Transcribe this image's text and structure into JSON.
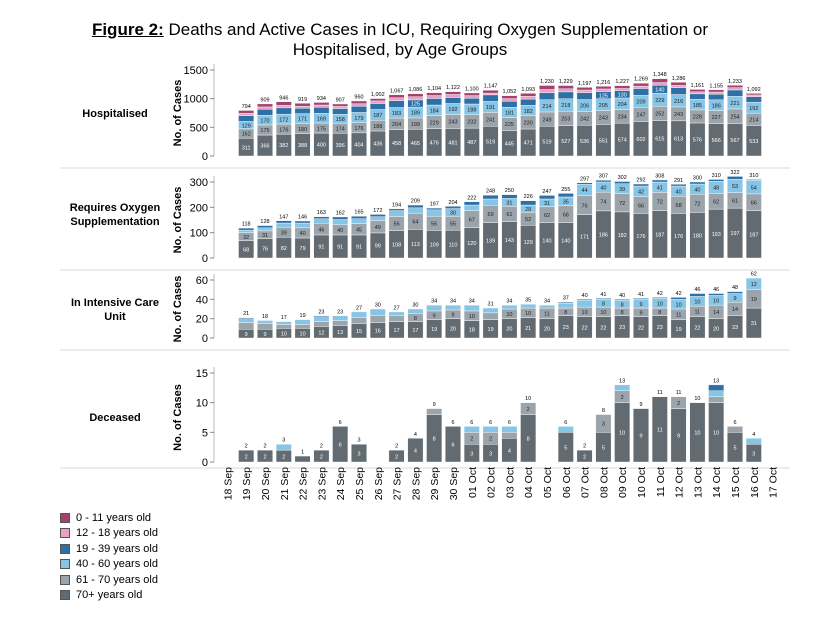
{
  "title": {
    "label": "Figure 2:",
    "text": " Deaths and Active Cases in ICU, Requiring Oxygen Supplementation or Hospitalised, by Age Groups"
  },
  "chart_data": {
    "type": "bar",
    "stacked": true,
    "grid": false,
    "legend_position": "bottom-left",
    "categories": [
      "18 Sep",
      "19 Sep",
      "20 Sep",
      "21 Sep",
      "22 Sep",
      "23 Sep",
      "24 Sep",
      "25 Sep",
      "26 Sep",
      "27 Sep",
      "28 Sep",
      "29 Sep",
      "30 Sep",
      "01 Oct",
      "02 Oct",
      "03 Oct",
      "04 Oct",
      "05 Oct",
      "06 Oct",
      "07 Oct",
      "08 Oct",
      "09 Oct",
      "10 Oct",
      "11 Oct",
      "12 Oct",
      "13 Oct",
      "14 Oct",
      "15 Oct",
      "16 Oct",
      "17 Oct"
    ],
    "series_names": [
      "0 - 11 years old",
      "12 - 18 years old",
      "19 - 39 years old",
      "40 - 60 years old",
      "61 - 70 years old",
      "70+ years old"
    ],
    "colors": {
      "0 - 11 years old": "#a3426f",
      "12 - 18 years old": "#e7a2c3",
      "19 - 39 years old": "#2e6fa6",
      "40 - 60 years old": "#87c5e6",
      "61 - 70 years old": "#9ca4ab",
      "70+ years old": "#626b72"
    },
    "panels": [
      {
        "name": "Hospitalised",
        "ylabel": "No. of Cases",
        "ylim": [
          0,
          1500
        ],
        "yticks": [
          0,
          500,
          1000,
          1500
        ],
        "totals": [
          null,
          794,
          909,
          946,
          919,
          934,
          907,
          960,
          1002,
          1067,
          1086,
          1104,
          1122,
          1100,
          1147,
          1052,
          1093,
          1230,
          1229,
          1197,
          1216,
          1227,
          1269,
          1348,
          1286,
          1161,
          1155,
          1233,
          1092,
          null
        ],
        "series": [
          {
            "name": "70+ years old",
            "values": [
              null,
              311,
              366,
              382,
              388,
              400,
              396,
              404,
              436,
              458,
              465,
              476,
              481,
              487,
              519,
              445,
              471,
              519,
              527,
              536,
              551,
              574,
              602,
              615,
              613,
              576,
              566,
              567,
              533,
              null
            ]
          },
          {
            "name": "61 - 70 years old",
            "values": [
              null,
              162,
              175,
              176,
              180,
              175,
              174,
              176,
              188,
              204,
              199,
              229,
              243,
              232,
              241,
              225,
              230,
              249,
              253,
              242,
              243,
              234,
              247,
              252,
              243,
              228,
              227,
              254,
              214,
              null
            ]
          },
          {
            "name": "40 - 60 years old",
            "values": [
              null,
              129,
              170,
              172,
              171,
              169,
              158,
              179,
              187,
              183,
              189,
              184,
              192,
              188,
              191,
              181,
              182,
              214,
              218,
              206,
              205,
              204,
              209,
              229,
              216,
              185,
              186,
              221,
              192,
              null
            ]
          },
          {
            "name": "19 - 39 years old",
            "values": [
              null,
              100,
              105,
              110,
              95,
              105,
              100,
              110,
              105,
              120,
              125,
              115,
              105,
              100,
              115,
              105,
              110,
              120,
              120,
              120,
              125,
              130,
              120,
              140,
              120,
              95,
              100,
              110,
              95,
              null
            ]
          },
          {
            "name": "12 - 18 years old",
            "values": [
              null,
              45,
              40,
              45,
              35,
              40,
              37,
              42,
              45,
              50,
              55,
              50,
              52,
              46,
              31,
              45,
              50,
              58,
              54,
              47,
              45,
              35,
              41,
              45,
              41,
              35,
              37,
              40,
              31,
              null
            ]
          },
          {
            "name": "0 - 11 years old",
            "values": [
              null,
              47,
              53,
              61,
              50,
              45,
              42,
              49,
              41,
              52,
              53,
              50,
              49,
              47,
              50,
              51,
              50,
              70,
              57,
              46,
              47,
              50,
              50,
              67,
              53,
              42,
              39,
              41,
              27,
              null
            ]
          }
        ]
      },
      {
        "name": "Requires Oxygen Supplementation",
        "ylabel": "No. of Cases",
        "ylim": [
          0,
          300
        ],
        "yticks": [
          0,
          100,
          200,
          300
        ],
        "totals": [
          null,
          118,
          128,
          147,
          146,
          163,
          162,
          165,
          172,
          194,
          209,
          197,
          204,
          222,
          248,
          250,
          226,
          247,
          255,
          297,
          307,
          302,
          292,
          308,
          291,
          300,
          310,
          322,
          310,
          null
        ],
        "series": [
          {
            "name": "70+ years old",
            "values": [
              null,
              68,
              76,
              82,
              79,
              91,
              91,
              91,
              99,
              108,
              113,
              109,
              110,
              120,
              139,
              143,
              129,
              140,
              140,
              171,
              186,
              182,
              176,
              187,
              176,
              180,
              193,
              197,
              187,
              null
            ]
          },
          {
            "name": "61 - 70 years old",
            "values": [
              null,
              32,
              31,
              39,
              40,
              46,
              40,
              45,
              49,
              56,
              64,
              56,
              55,
              67,
              69,
              61,
              52,
              62,
              66,
              76,
              74,
              72,
              66,
              72,
              68,
              72,
              62,
              61,
              66,
              null
            ]
          },
          {
            "name": "40 - 60 years old",
            "values": [
              null,
              10,
              12,
              17,
              19,
              18,
              21,
              19,
              15,
              23,
              21,
              25,
              30,
              22,
              25,
              31,
              28,
              31,
              35,
              44,
              40,
              39,
              42,
              41,
              40,
              40,
              48,
              53,
              54,
              null
            ]
          },
          {
            "name": "19 - 39 years old",
            "values": [
              null,
              8,
              9,
              9,
              8,
              8,
              10,
              10,
              9,
              7,
              11,
              7,
              9,
              13,
              15,
              15,
              17,
              14,
              14,
              6,
              7,
              9,
              8,
              8,
              7,
              8,
              7,
              11,
              3,
              null
            ]
          },
          {
            "name": "12 - 18 years old",
            "values": [
              null,
              0,
              0,
              0,
              0,
              0,
              0,
              0,
              0,
              0,
              0,
              0,
              0,
              0,
              0,
              0,
              0,
              0,
              0,
              0,
              0,
              0,
              0,
              0,
              0,
              0,
              0,
              0,
              0,
              null
            ]
          },
          {
            "name": "0 - 11 years old",
            "values": [
              null,
              0,
              0,
              0,
              0,
              0,
              0,
              0,
              0,
              0,
              0,
              0,
              0,
              0,
              0,
              0,
              0,
              0,
              0,
              0,
              0,
              0,
              0,
              0,
              0,
              0,
              0,
              0,
              0,
              null
            ]
          }
        ]
      },
      {
        "name": "In Intensive Care Unit",
        "ylabel": "No. of Cases",
        "ylim": [
          0,
          60
        ],
        "yticks": [
          0,
          20,
          40,
          60
        ],
        "totals": [
          null,
          21,
          18,
          17,
          19,
          23,
          23,
          27,
          30,
          27,
          30,
          34,
          34,
          34,
          31,
          34,
          35,
          34,
          37,
          40,
          41,
          40,
          41,
          42,
          42,
          46,
          46,
          48,
          62,
          null
        ],
        "series": [
          {
            "name": "70+ years old",
            "values": [
              null,
              9,
              9,
              10,
              10,
              12,
              13,
              15,
              16,
              17,
              17,
              19,
              20,
              18,
              19,
              20,
              21,
              20,
              23,
              22,
              22,
              23,
              22,
              23,
              19,
              22,
              20,
              23,
              31,
              null
            ]
          },
          {
            "name": "61 - 70 years old",
            "values": [
              null,
              7,
              6,
              4,
              4,
              5,
              5,
              6,
              7,
              6,
              8,
              9,
              9,
              10,
              7,
              10,
              10,
              11,
              8,
              10,
              10,
              8,
              9,
              8,
              11,
              11,
              14,
              14,
              19,
              null
            ]
          },
          {
            "name": "40 - 60 years old",
            "values": [
              null,
              4,
              2,
              3,
              5,
              5,
              5,
              6,
              7,
              4,
              5,
              6,
              5,
              6,
              5,
              4,
              4,
              3,
              5,
              7,
              8,
              8,
              9,
              10,
              10,
              10,
              10,
              9,
              12,
              null
            ]
          },
          {
            "name": "19 - 39 years old",
            "values": [
              null,
              1,
              1,
              0,
              0,
              1,
              0,
              0,
              0,
              0,
              0,
              0,
              0,
              0,
              0,
              0,
              0,
              0,
              1,
              1,
              1,
              1,
              1,
              1,
              2,
              3,
              2,
              2,
              0,
              null
            ]
          },
          {
            "name": "12 - 18 years old",
            "values": [
              null,
              0,
              0,
              0,
              0,
              0,
              0,
              0,
              0,
              0,
              0,
              0,
              0,
              0,
              0,
              0,
              0,
              0,
              0,
              0,
              0,
              0,
              0,
              0,
              0,
              0,
              0,
              0,
              0,
              null
            ]
          },
          {
            "name": "0 - 11 years old",
            "values": [
              null,
              0,
              0,
              0,
              0,
              0,
              0,
              0,
              0,
              0,
              0,
              0,
              0,
              0,
              0,
              0,
              0,
              0,
              0,
              0,
              0,
              0,
              0,
              0,
              0,
              0,
              0,
              0,
              0,
              null
            ]
          }
        ]
      },
      {
        "name": "Deceased",
        "ylabel": "No. of Cases",
        "ylim": [
          0,
          15
        ],
        "yticks": [
          0,
          5,
          10,
          15
        ],
        "totals": [
          null,
          2,
          2,
          3,
          1,
          2,
          6,
          3,
          null,
          2,
          4,
          9,
          6,
          6,
          6,
          6,
          10,
          null,
          6,
          2,
          8,
          13,
          9,
          11,
          11,
          10,
          13,
          6,
          4,
          null
        ],
        "series": [
          {
            "name": "70+ years old",
            "values": [
              null,
              2,
              2,
              2,
              1,
              2,
              6,
              3,
              null,
              2,
              4,
              8,
              6,
              3,
              3,
              4,
              8,
              null,
              5,
              2,
              5,
              10,
              9,
              11,
              9,
              10,
              10,
              5,
              3,
              null
            ]
          },
          {
            "name": "61 - 70 years old",
            "values": [
              null,
              0,
              0,
              0,
              0,
              0,
              0,
              0,
              null,
              0,
              0,
              1,
              0,
              2,
              2,
              1,
              2,
              null,
              0,
              0,
              3,
              2,
              0,
              0,
              2,
              0,
              1,
              1,
              0,
              null
            ]
          },
          {
            "name": "40 - 60 years old",
            "values": [
              null,
              0,
              0,
              1,
              0,
              0,
              0,
              0,
              null,
              0,
              0,
              0,
              0,
              1,
              1,
              1,
              0,
              null,
              1,
              0,
              0,
              1,
              0,
              0,
              0,
              0,
              1,
              0,
              1,
              null
            ]
          },
          {
            "name": "19 - 39 years old",
            "values": [
              null,
              0,
              0,
              0,
              0,
              0,
              0,
              0,
              null,
              0,
              0,
              0,
              0,
              0,
              0,
              0,
              0,
              null,
              0,
              0,
              0,
              0,
              0,
              0,
              0,
              0,
              1,
              0,
              0,
              null
            ]
          },
          {
            "name": "12 - 18 years old",
            "values": [
              null,
              0,
              0,
              0,
              0,
              0,
              0,
              0,
              null,
              0,
              0,
              0,
              0,
              0,
              0,
              0,
              0,
              null,
              0,
              0,
              0,
              0,
              0,
              0,
              0,
              0,
              0,
              0,
              0,
              null
            ]
          },
          {
            "name": "0 - 11 years old",
            "values": [
              null,
              0,
              0,
              0,
              0,
              0,
              0,
              0,
              null,
              0,
              0,
              0,
              0,
              0,
              0,
              0,
              0,
              null,
              0,
              0,
              0,
              0,
              0,
              0,
              0,
              0,
              0,
              0,
              0,
              null
            ]
          }
        ]
      }
    ]
  },
  "legend": [
    {
      "label": "0 - 11 years old",
      "color": "#a3426f"
    },
    {
      "label": "12 - 18 years old",
      "color": "#e7a2c3"
    },
    {
      "label": "19 - 39 years old",
      "color": "#2e6fa6"
    },
    {
      "label": "40 - 60 years old",
      "color": "#87c5e6"
    },
    {
      "label": "61 - 70 years old",
      "color": "#9ca4ab"
    },
    {
      "label": "70+ years old",
      "color": "#626b72"
    }
  ]
}
